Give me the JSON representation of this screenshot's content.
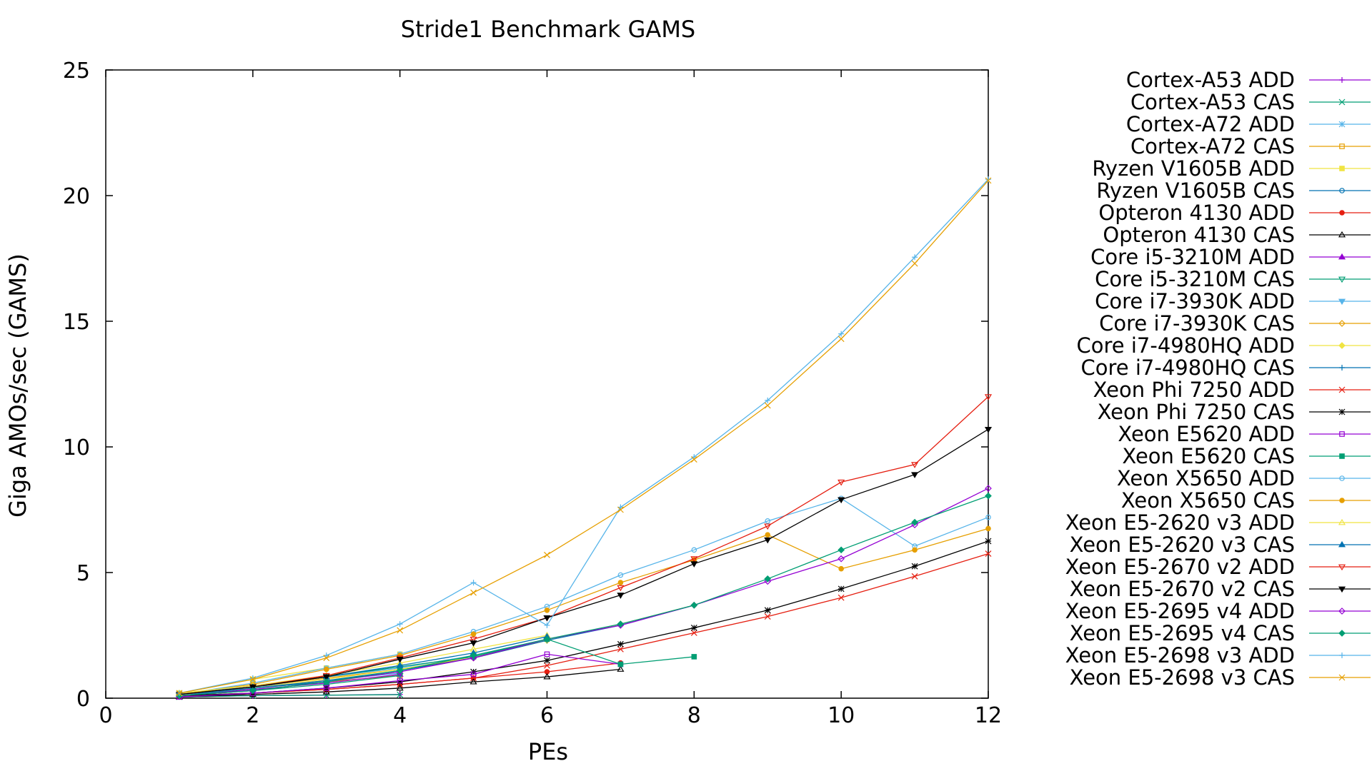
{
  "chart_data": {
    "type": "line",
    "title": "Stride1 Benchmark GAMS",
    "xlabel": "PEs",
    "ylabel": "Giga AMOs/sec (GAMS)",
    "xlim": [
      0,
      12
    ],
    "ylim": [
      0,
      25
    ],
    "xticks": [
      0,
      2,
      4,
      6,
      8,
      10,
      12
    ],
    "yticks": [
      0,
      5,
      10,
      15,
      20,
      25
    ],
    "grid": false,
    "legend_position": "right",
    "series": [
      {
        "name": "Cortex-A53 ADD",
        "color": "#9400d3",
        "marker": "plus",
        "x": [
          1,
          2,
          3,
          4
        ],
        "y": [
          0.05,
          0.1,
          0.12,
          0.15
        ]
      },
      {
        "name": "Cortex-A53 CAS",
        "color": "#009e73",
        "marker": "cross",
        "x": [
          1,
          2,
          3,
          4
        ],
        "y": [
          0.05,
          0.1,
          0.12,
          0.14
        ]
      },
      {
        "name": "Cortex-A72 ADD",
        "color": "#56b4e9",
        "marker": "star",
        "x": [
          1,
          2,
          3,
          4
        ],
        "y": [
          0.2,
          0.45,
          0.7,
          1.0
        ]
      },
      {
        "name": "Cortex-A72 CAS",
        "color": "#e69f00",
        "marker": "box",
        "x": [
          1,
          2,
          3,
          4
        ],
        "y": [
          0.15,
          0.4,
          0.65,
          0.9
        ]
      },
      {
        "name": "Ryzen V1605B ADD",
        "color": "#f0e442",
        "marker": "boxfill",
        "x": [
          1,
          2,
          3,
          4
        ],
        "y": [
          0.2,
          0.75,
          1.2,
          1.75
        ]
      },
      {
        "name": "Ryzen V1605B CAS",
        "color": "#0072b2",
        "marker": "circle",
        "x": [
          1,
          2,
          3,
          4
        ],
        "y": [
          0.15,
          0.4,
          0.65,
          1.1
        ]
      },
      {
        "name": "Opteron 4130 ADD",
        "color": "#e51e10",
        "marker": "circlefill",
        "x": [
          1,
          2,
          3,
          4,
          5,
          6,
          7
        ],
        "y": [
          0.05,
          0.2,
          0.35,
          0.55,
          0.8,
          1.05,
          1.4
        ]
      },
      {
        "name": "Opteron 4130 CAS",
        "color": "#000000",
        "marker": "triangle",
        "x": [
          1,
          2,
          3,
          4,
          5,
          6,
          7
        ],
        "y": [
          0.05,
          0.15,
          0.25,
          0.4,
          0.65,
          0.85,
          1.15
        ]
      },
      {
        "name": "Core i5-3210M ADD",
        "color": "#9400d3",
        "marker": "trianglefill",
        "x": [
          1,
          2,
          3,
          4
        ],
        "y": [
          0.1,
          0.35,
          0.6,
          0.95
        ]
      },
      {
        "name": "Core i5-3210M CAS",
        "color": "#009e73",
        "marker": "dtriangle",
        "x": [
          1,
          2,
          3,
          4
        ],
        "y": [
          0.1,
          0.3,
          0.55,
          0.9
        ]
      },
      {
        "name": "Core i7-3930K ADD",
        "color": "#56b4e9",
        "marker": "dtrianglefill",
        "x": [
          1,
          2,
          3,
          4,
          5,
          6
        ],
        "y": [
          0.15,
          0.45,
          0.85,
          1.2,
          1.7,
          2.3
        ]
      },
      {
        "name": "Core i7-3930K CAS",
        "color": "#e69f00",
        "marker": "diamond",
        "x": [
          1,
          2,
          3,
          4,
          5,
          6
        ],
        "y": [
          0.15,
          0.45,
          0.8,
          1.15,
          1.6,
          2.3
        ]
      },
      {
        "name": "Core i7-4980HQ ADD",
        "color": "#f0e442",
        "marker": "diamondfill",
        "x": [
          1,
          2,
          3,
          4,
          5,
          6,
          7,
          8
        ],
        "y": [
          0.1,
          0.4,
          0.75,
          1.15,
          1.65,
          2.3,
          2.95,
          3.7
        ]
      },
      {
        "name": "Core i7-4980HQ CAS",
        "color": "#0072b2",
        "marker": "plus",
        "x": [
          1,
          2,
          3,
          4,
          5,
          6,
          7,
          8
        ],
        "y": [
          0.1,
          0.4,
          0.7,
          1.1,
          1.6,
          2.3,
          2.9,
          3.7
        ]
      },
      {
        "name": "Xeon Phi 7250 ADD",
        "color": "#e51e10",
        "marker": "cross",
        "x": [
          1,
          2,
          3,
          4,
          5,
          6,
          7,
          8,
          9,
          10,
          11,
          12
        ],
        "y": [
          0.1,
          0.2,
          0.35,
          0.55,
          0.8,
          1.3,
          1.95,
          2.6,
          3.25,
          4.0,
          4.85,
          5.75
        ]
      },
      {
        "name": "Xeon Phi 7250 CAS",
        "color": "#000000",
        "marker": "star",
        "x": [
          1,
          2,
          3,
          4,
          5,
          6,
          7,
          8,
          9,
          10,
          11,
          12
        ],
        "y": [
          0.1,
          0.2,
          0.4,
          0.65,
          1.05,
          1.5,
          2.15,
          2.8,
          3.5,
          4.35,
          5.25,
          6.25
        ]
      },
      {
        "name": "Xeon E5620 ADD",
        "color": "#9400d3",
        "marker": "box",
        "x": [
          1,
          2,
          3,
          4,
          5,
          6,
          7
        ],
        "y": [
          0.05,
          0.2,
          0.4,
          0.7,
          0.95,
          1.75,
          1.35
        ]
      },
      {
        "name": "Xeon E5620 CAS",
        "color": "#009e73",
        "marker": "boxfill",
        "x": [
          1,
          2,
          3,
          4,
          5,
          6,
          7,
          8
        ],
        "y": [
          0.15,
          0.45,
          0.85,
          1.25,
          1.65,
          2.35,
          1.35,
          1.65
        ]
      },
      {
        "name": "Xeon X5650 ADD",
        "color": "#56b4e9",
        "marker": "circle",
        "x": [
          1,
          2,
          3,
          4,
          5,
          6,
          7,
          8,
          9,
          10,
          11,
          12
        ],
        "y": [
          0.15,
          0.6,
          1.2,
          1.75,
          2.65,
          3.65,
          4.9,
          5.9,
          7.05,
          7.95,
          6.05,
          7.2
        ]
      },
      {
        "name": "Xeon X5650 CAS",
        "color": "#e69f00",
        "marker": "circlefill",
        "x": [
          1,
          2,
          3,
          4,
          5,
          6,
          7,
          8,
          9,
          10,
          11,
          12
        ],
        "y": [
          0.15,
          0.55,
          1.15,
          1.7,
          2.55,
          3.5,
          4.6,
          5.5,
          6.5,
          5.15,
          5.9,
          6.75
        ]
      },
      {
        "name": "Xeon E5-2620 v3 ADD",
        "color": "#f0e442",
        "marker": "triangle",
        "x": [
          1,
          2,
          3,
          4,
          5,
          6
        ],
        "y": [
          0.2,
          0.5,
          0.9,
          1.4,
          1.95,
          2.5
        ]
      },
      {
        "name": "Xeon E5-2620 v3 CAS",
        "color": "#0072b2",
        "marker": "trianglefill",
        "x": [
          1,
          2,
          3,
          4,
          5,
          6
        ],
        "y": [
          0.15,
          0.45,
          0.85,
          1.3,
          1.8,
          2.45
        ]
      },
      {
        "name": "Xeon E5-2670 v2 ADD",
        "color": "#e51e10",
        "marker": "dtriangle",
        "x": [
          1,
          2,
          3,
          4,
          5,
          6,
          7,
          8,
          9,
          10,
          11,
          12
        ],
        "y": [
          0.15,
          0.45,
          0.9,
          1.6,
          2.35,
          3.2,
          4.4,
          5.55,
          6.85,
          8.6,
          9.3,
          12.0
        ]
      },
      {
        "name": "Xeon E5-2670 v2 CAS",
        "color": "#000000",
        "marker": "dtrianglefill",
        "x": [
          1,
          2,
          3,
          4,
          5,
          6,
          7,
          8,
          9,
          10,
          11,
          12
        ],
        "y": [
          0.15,
          0.45,
          0.85,
          1.55,
          2.2,
          3.2,
          4.1,
          5.35,
          6.3,
          7.9,
          8.9,
          10.7
        ]
      },
      {
        "name": "Xeon E5-2695 v4 ADD",
        "color": "#9400d3",
        "marker": "diamond",
        "x": [
          1,
          2,
          3,
          4,
          5,
          6,
          7,
          8,
          9,
          10,
          11,
          12
        ],
        "y": [
          0.1,
          0.3,
          0.65,
          1.05,
          1.6,
          2.35,
          2.9,
          3.7,
          4.65,
          5.55,
          6.9,
          8.35
        ]
      },
      {
        "name": "Xeon E5-2695 v4 CAS",
        "color": "#009e73",
        "marker": "diamondfill",
        "x": [
          1,
          2,
          3,
          4,
          5,
          6,
          7,
          8,
          9,
          10,
          11,
          12
        ],
        "y": [
          0.1,
          0.3,
          0.65,
          1.1,
          1.7,
          2.35,
          2.95,
          3.7,
          4.75,
          5.9,
          7.0,
          8.05
        ]
      },
      {
        "name": "Xeon E5-2698 v3 ADD",
        "color": "#56b4e9",
        "marker": "plus",
        "x": [
          1,
          2,
          3,
          4,
          5,
          6,
          7,
          8,
          9,
          10,
          11,
          12
        ],
        "y": [
          0.2,
          0.8,
          1.7,
          2.95,
          4.6,
          2.9,
          7.6,
          9.6,
          11.85,
          14.5,
          17.55,
          20.65
        ]
      },
      {
        "name": "Xeon E5-2698 v3 CAS",
        "color": "#e69f00",
        "marker": "cross",
        "x": [
          1,
          2,
          3,
          4,
          5,
          6,
          7,
          8,
          9,
          10,
          11,
          12
        ],
        "y": [
          0.2,
          0.75,
          1.6,
          2.7,
          4.2,
          5.7,
          7.5,
          9.5,
          11.65,
          14.3,
          17.3,
          20.6
        ]
      }
    ]
  }
}
